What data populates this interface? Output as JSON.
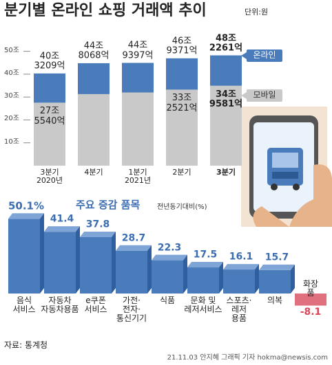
{
  "header": {
    "title": "분기별 온라인 쇼핑 거래액 추이",
    "unit": "단위:원"
  },
  "chart_data": [
    {
      "type": "bar",
      "categories": [
        "3분기\n2020년",
        "4분기",
        "1분기\n2021년",
        "2분기",
        "3분기"
      ],
      "series": [
        {
          "name": "온라인",
          "color": "#4a7cbc",
          "values": [
            40.3209,
            44.8068,
            44.9397,
            46.9371,
            48.2261
          ],
          "value_labels": [
            "40조\n3209억",
            "44조\n8068억",
            "44조\n9397억",
            "46조\n9371억",
            "48조\n2261억"
          ]
        },
        {
          "name": "모바일",
          "color": "#c9c9c9",
          "values": [
            27.554,
            31.3,
            32.0,
            33.2521,
            34.9581
          ],
          "value_labels": [
            "27조\n5540억",
            null,
            null,
            "33조\n2521억",
            "34조\n9581억"
          ]
        }
      ],
      "ylim": [
        0,
        55
      ],
      "yticks": [
        {
          "value": 10,
          "label": "10조"
        },
        {
          "value": 20,
          "label": "20조"
        },
        {
          "value": 30,
          "label": "30조"
        },
        {
          "value": 40,
          "label": "40조"
        },
        {
          "value": 50,
          "label": "50조"
        }
      ],
      "legend": "right"
    },
    {
      "type": "bar3d",
      "title": "주요 증감 품목",
      "subtitle": "전년동기대비(%)",
      "categories": [
        "음식\n서비스",
        "자동차\n자동차용품",
        "e쿠폰\n서비스",
        "가전·\n전자·\n통신기기",
        "식품",
        "문화 및\n레저서비스",
        "스포츠·\n레저\n용품",
        "의복",
        "화장품"
      ],
      "values": [
        50.1,
        41.4,
        37.8,
        28.7,
        22.3,
        17.5,
        16.1,
        15.7,
        -8.1
      ],
      "value_labels": [
        "50.1%",
        "41.4",
        "37.8",
        "28.7",
        "22.3",
        "17.5",
        "16.1",
        "15.7",
        "-8.1"
      ],
      "color": "#4a7cbc",
      "negative_color": "#e0707e"
    }
  ],
  "footer": {
    "source": "자료: 통계청",
    "credit": "21.11.03 안지혜 그래픽 기자 hokma@newsis.com"
  }
}
